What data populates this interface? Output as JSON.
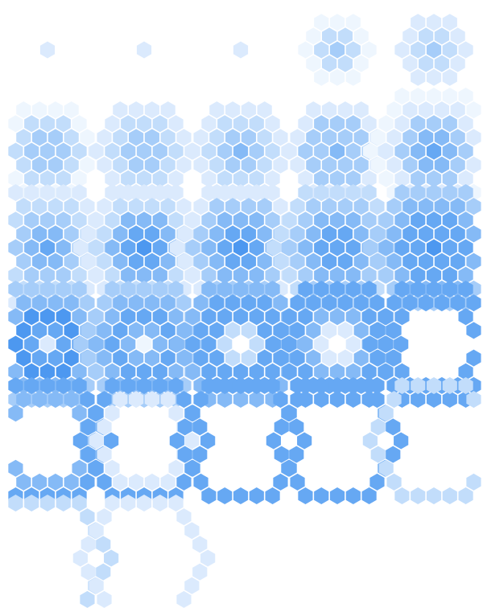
{
  "sequence": {
    "grid": {
      "columns": 5,
      "rows": 6,
      "frame_count": 27
    },
    "palette": {
      "background": "#ffffff",
      "shades": [
        "#eef6fe",
        "#dbeafd",
        "#c2ddfb",
        "#a6cdf9",
        "#85baf6",
        "#66a8f3",
        "#4d98f0"
      ]
    },
    "frames": [
      {
        "rings": [
          1
        ]
      },
      {
        "rings": [
          1
        ]
      },
      {
        "rings": [
          1
        ]
      },
      {
        "rings": [
          3,
          2,
          0
        ]
      },
      {
        "rings": [
          3,
          2,
          1
        ]
      },
      {
        "rings": [
          3,
          3,
          2,
          0
        ]
      },
      {
        "rings": [
          3,
          3,
          2,
          1
        ]
      },
      {
        "rings": [
          4,
          3,
          2,
          1
        ]
      },
      {
        "rings": [
          4,
          3,
          3,
          1
        ]
      },
      {
        "rings": [
          5,
          4,
          3,
          1,
          0
        ]
      },
      {
        "rings": [
          5,
          4,
          3,
          2,
          1
        ]
      },
      {
        "rings": [
          6,
          5,
          4,
          2,
          1
        ]
      },
      {
        "rings": [
          6,
          5,
          4,
          3,
          1
        ]
      },
      {
        "rings": [
          5,
          5,
          4,
          3,
          2
        ]
      },
      {
        "rings": [
          6,
          5,
          5,
          4,
          3
        ]
      },
      {
        "rings": [
          1,
          5,
          6,
          4,
          3
        ]
      },
      {
        "rings": [
          0,
          4,
          5,
          4,
          3
        ]
      },
      {
        "rings": [
          -1,
          2,
          5,
          5,
          4
        ]
      },
      {
        "rings": [
          -1,
          1,
          4,
          5,
          5
        ]
      },
      {
        "rings": [
          -1,
          -1,
          -1,
          5,
          5
        ]
      },
      {
        "rings": [
          -1,
          -1,
          -1,
          4,
          5
        ]
      },
      {
        "rings": [
          -1,
          -1,
          -1,
          1,
          5
        ]
      },
      {
        "rings": [
          -1,
          -1,
          -1,
          -1,
          5
        ]
      },
      {
        "rings": [
          -1,
          -1,
          -1,
          -1,
          5
        ]
      },
      {
        "rings": [
          -1,
          -1,
          -1,
          -1,
          2
        ]
      },
      {
        "rings": [
          -1,
          -1,
          -1,
          -1,
          2
        ]
      },
      {
        "rings": [
          -1,
          -1,
          -1,
          -1,
          1
        ]
      }
    ]
  }
}
